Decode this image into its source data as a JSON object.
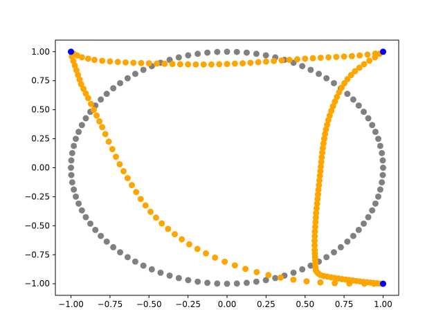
{
  "chart_data": {
    "type": "scatter",
    "title": "",
    "xlabel": "",
    "ylabel": "",
    "xlim": [
      -1.1,
      1.1
    ],
    "ylim": [
      -1.1,
      1.1
    ],
    "grid": false,
    "legend": "none",
    "x_ticks": [
      -1.0,
      -0.75,
      -0.5,
      -0.25,
      0.0,
      0.25,
      0.5,
      0.75,
      1.0
    ],
    "y_ticks": [
      -1.0,
      -0.75,
      -0.5,
      -0.25,
      0.0,
      0.25,
      0.5,
      0.75,
      1.0
    ],
    "x_tick_labels": [
      "−1.00",
      "−0.75",
      "−0.50",
      "−0.25",
      "0.00",
      "0.25",
      "0.50",
      "0.75",
      "1.00"
    ],
    "y_tick_labels": [
      "−1.00",
      "−0.75",
      "−0.50",
      "−0.25",
      "0.00",
      "0.25",
      "0.50",
      "0.75",
      "1.00"
    ],
    "series": [
      {
        "color": "#808080",
        "shape": "unit circle",
        "points": [
          [
            1.0,
            0.0
          ],
          [
            0.998,
            0.063
          ],
          [
            0.992,
            0.126
          ],
          [
            0.982,
            0.188
          ],
          [
            0.969,
            0.249
          ],
          [
            0.951,
            0.309
          ],
          [
            0.93,
            0.368
          ],
          [
            0.905,
            0.426
          ],
          [
            0.876,
            0.482
          ],
          [
            0.844,
            0.536
          ],
          [
            0.809,
            0.588
          ],
          [
            0.771,
            0.637
          ],
          [
            0.729,
            0.685
          ],
          [
            0.685,
            0.729
          ],
          [
            0.637,
            0.771
          ],
          [
            0.588,
            0.809
          ],
          [
            0.536,
            0.844
          ],
          [
            0.482,
            0.876
          ],
          [
            0.426,
            0.905
          ],
          [
            0.368,
            0.93
          ],
          [
            0.309,
            0.951
          ],
          [
            0.249,
            0.969
          ],
          [
            0.188,
            0.982
          ],
          [
            0.126,
            0.992
          ],
          [
            0.063,
            0.998
          ],
          [
            0.0,
            1.0
          ],
          [
            -0.063,
            0.998
          ],
          [
            -0.126,
            0.992
          ],
          [
            -0.188,
            0.982
          ],
          [
            -0.249,
            0.969
          ],
          [
            -0.309,
            0.951
          ],
          [
            -0.368,
            0.93
          ],
          [
            -0.426,
            0.905
          ],
          [
            -0.482,
            0.876
          ],
          [
            -0.536,
            0.844
          ],
          [
            -0.588,
            0.809
          ],
          [
            -0.637,
            0.771
          ],
          [
            -0.685,
            0.729
          ],
          [
            -0.729,
            0.685
          ],
          [
            -0.771,
            0.637
          ],
          [
            -0.809,
            0.588
          ],
          [
            -0.844,
            0.536
          ],
          [
            -0.876,
            0.482
          ],
          [
            -0.905,
            0.426
          ],
          [
            -0.93,
            0.368
          ],
          [
            -0.951,
            0.309
          ],
          [
            -0.969,
            0.249
          ],
          [
            -0.982,
            0.188
          ],
          [
            -0.992,
            0.126
          ],
          [
            -0.998,
            0.063
          ],
          [
            -1.0,
            0.0
          ],
          [
            -0.998,
            -0.063
          ],
          [
            -0.992,
            -0.126
          ],
          [
            -0.982,
            -0.188
          ],
          [
            -0.969,
            -0.249
          ],
          [
            -0.951,
            -0.309
          ],
          [
            -0.93,
            -0.368
          ],
          [
            -0.905,
            -0.426
          ],
          [
            -0.876,
            -0.482
          ],
          [
            -0.844,
            -0.536
          ],
          [
            -0.809,
            -0.588
          ],
          [
            -0.771,
            -0.637
          ],
          [
            -0.729,
            -0.685
          ],
          [
            -0.685,
            -0.729
          ],
          [
            -0.637,
            -0.771
          ],
          [
            -0.588,
            -0.809
          ],
          [
            -0.536,
            -0.844
          ],
          [
            -0.482,
            -0.876
          ],
          [
            -0.426,
            -0.905
          ],
          [
            -0.368,
            -0.93
          ],
          [
            -0.309,
            -0.951
          ],
          [
            -0.249,
            -0.969
          ],
          [
            -0.188,
            -0.982
          ],
          [
            -0.126,
            -0.992
          ],
          [
            -0.063,
            -0.998
          ],
          [
            0.0,
            -1.0
          ],
          [
            0.063,
            -0.998
          ],
          [
            0.126,
            -0.992
          ],
          [
            0.188,
            -0.982
          ],
          [
            0.249,
            -0.969
          ],
          [
            0.309,
            -0.951
          ],
          [
            0.368,
            -0.93
          ],
          [
            0.426,
            -0.905
          ],
          [
            0.482,
            -0.876
          ],
          [
            0.536,
            -0.844
          ],
          [
            0.588,
            -0.809
          ],
          [
            0.637,
            -0.771
          ],
          [
            0.685,
            -0.729
          ],
          [
            0.729,
            -0.685
          ],
          [
            0.771,
            -0.637
          ],
          [
            0.809,
            -0.588
          ],
          [
            0.844,
            -0.536
          ],
          [
            0.876,
            -0.482
          ],
          [
            0.905,
            -0.426
          ],
          [
            0.93,
            -0.368
          ],
          [
            0.951,
            -0.309
          ],
          [
            0.969,
            -0.249
          ],
          [
            0.982,
            -0.188
          ],
          [
            0.992,
            -0.126
          ],
          [
            0.998,
            -0.063
          ]
        ]
      },
      {
        "color": "#ffa500",
        "shape": "curved path through corner points",
        "points": [
          [
            1.0,
            -1.0
          ],
          [
            0.98,
            -0.999
          ],
          [
            0.96,
            -0.996
          ],
          [
            0.939,
            -0.993
          ],
          [
            0.918,
            -0.99
          ],
          [
            0.897,
            -0.987
          ],
          [
            0.875,
            -0.984
          ],
          [
            0.852,
            -0.98
          ],
          [
            0.829,
            -0.976
          ],
          [
            0.806,
            -0.972
          ],
          [
            0.783,
            -0.968
          ],
          [
            0.76,
            -0.964
          ],
          [
            0.737,
            -0.96
          ],
          [
            0.714,
            -0.955
          ],
          [
            0.69,
            -0.95
          ],
          [
            0.667,
            -0.945
          ],
          [
            0.643,
            -0.939
          ],
          [
            0.62,
            -0.933
          ],
          [
            0.597,
            -0.924
          ],
          [
            0.585,
            -0.912
          ],
          [
            0.576,
            -0.899
          ],
          [
            0.569,
            -0.885
          ],
          [
            0.567,
            -0.86
          ],
          [
            0.566,
            -0.83
          ],
          [
            0.565,
            -0.8
          ],
          [
            0.564,
            -0.77
          ],
          [
            0.563,
            -0.74
          ],
          [
            0.562,
            -0.71
          ],
          [
            0.561,
            -0.67
          ],
          [
            0.561,
            -0.63
          ],
          [
            0.562,
            -0.59
          ],
          [
            0.563,
            -0.55
          ],
          [
            0.565,
            -0.51
          ],
          [
            0.567,
            -0.47
          ],
          [
            0.569,
            -0.43
          ],
          [
            0.571,
            -0.39
          ],
          [
            0.574,
            -0.35
          ],
          [
            0.577,
            -0.31
          ],
          [
            0.58,
            -0.27
          ],
          [
            0.583,
            -0.23
          ],
          [
            0.586,
            -0.19
          ],
          [
            0.589,
            -0.15
          ],
          [
            0.592,
            -0.11
          ],
          [
            0.595,
            -0.07
          ],
          [
            0.598,
            -0.03
          ],
          [
            0.601,
            0.01
          ],
          [
            0.604,
            0.05
          ],
          [
            0.607,
            0.09
          ],
          [
            0.61,
            0.13
          ],
          [
            0.614,
            0.17
          ],
          [
            0.618,
            0.21
          ],
          [
            0.623,
            0.25
          ],
          [
            0.628,
            0.29
          ],
          [
            0.634,
            0.33
          ],
          [
            0.641,
            0.37
          ],
          [
            0.649,
            0.41
          ],
          [
            0.658,
            0.45
          ],
          [
            0.668,
            0.49
          ],
          [
            0.679,
            0.53
          ],
          [
            0.691,
            0.57
          ],
          [
            0.704,
            0.61
          ],
          [
            0.718,
            0.65
          ],
          [
            0.734,
            0.69
          ],
          [
            0.752,
            0.728
          ],
          [
            0.772,
            0.764
          ],
          [
            0.795,
            0.799
          ],
          [
            0.82,
            0.832
          ],
          [
            0.848,
            0.862
          ],
          [
            0.878,
            0.892
          ],
          [
            0.912,
            0.922
          ],
          [
            0.948,
            0.952
          ],
          [
            0.977,
            0.982
          ],
          [
            1.0,
            1.0
          ],
          [
            0.95,
            0.984
          ],
          [
            0.9,
            0.975
          ],
          [
            0.85,
            0.968
          ],
          [
            0.8,
            0.962
          ],
          [
            0.75,
            0.958
          ],
          [
            0.7,
            0.955
          ],
          [
            0.65,
            0.952
          ],
          [
            0.6,
            0.948
          ],
          [
            0.55,
            0.944
          ],
          [
            0.5,
            0.94
          ],
          [
            0.45,
            0.935
          ],
          [
            0.4,
            0.93
          ],
          [
            0.35,
            0.925
          ],
          [
            0.3,
            0.92
          ],
          [
            0.25,
            0.915
          ],
          [
            0.2,
            0.91
          ],
          [
            0.15,
            0.905
          ],
          [
            0.1,
            0.9
          ],
          [
            0.05,
            0.897
          ],
          [
            0.0,
            0.894
          ],
          [
            -0.05,
            0.892
          ],
          [
            -0.1,
            0.89
          ],
          [
            -0.15,
            0.89
          ],
          [
            -0.2,
            0.89
          ],
          [
            -0.25,
            0.891
          ],
          [
            -0.3,
            0.892
          ],
          [
            -0.35,
            0.894
          ],
          [
            -0.4,
            0.896
          ],
          [
            -0.45,
            0.898
          ],
          [
            -0.5,
            0.9
          ],
          [
            -0.55,
            0.902
          ],
          [
            -0.6,
            0.905
          ],
          [
            -0.65,
            0.908
          ],
          [
            -0.7,
            0.912
          ],
          [
            -0.75,
            0.916
          ],
          [
            -0.8,
            0.922
          ],
          [
            -0.85,
            0.93
          ],
          [
            -0.89,
            0.94
          ],
          [
            -0.93,
            0.952
          ],
          [
            -0.96,
            0.968
          ],
          [
            -0.985,
            0.985
          ],
          [
            -1.0,
            1.0
          ],
          [
            -0.995,
            0.96
          ],
          [
            -0.985,
            0.92
          ],
          [
            -0.975,
            0.88
          ],
          [
            -0.965,
            0.84
          ],
          [
            -0.955,
            0.8
          ],
          [
            -0.945,
            0.76
          ],
          [
            -0.935,
            0.72
          ],
          [
            -0.92,
            0.68
          ],
          [
            -0.905,
            0.64
          ],
          [
            -0.89,
            0.6
          ],
          [
            -0.872,
            0.55
          ],
          [
            -0.854,
            0.5
          ],
          [
            -0.836,
            0.45
          ],
          [
            -0.818,
            0.4
          ],
          [
            -0.8,
            0.35
          ],
          [
            -0.78,
            0.29
          ],
          [
            -0.758,
            0.225
          ],
          [
            -0.735,
            0.16
          ],
          [
            -0.712,
            0.095
          ],
          [
            -0.688,
            0.03
          ],
          [
            -0.663,
            -0.03
          ],
          [
            -0.637,
            -0.09
          ],
          [
            -0.61,
            -0.15
          ],
          [
            -0.582,
            -0.21
          ],
          [
            -0.553,
            -0.27
          ],
          [
            -0.522,
            -0.325
          ],
          [
            -0.49,
            -0.38
          ],
          [
            -0.455,
            -0.43
          ],
          [
            -0.418,
            -0.48
          ],
          [
            -0.378,
            -0.527
          ],
          [
            -0.335,
            -0.573
          ],
          [
            -0.29,
            -0.617
          ],
          [
            -0.242,
            -0.66
          ],
          [
            -0.19,
            -0.7
          ],
          [
            -0.135,
            -0.738
          ],
          [
            -0.077,
            -0.775
          ],
          [
            -0.015,
            -0.81
          ],
          [
            0.05,
            -0.842
          ],
          [
            0.118,
            -0.872
          ],
          [
            0.19,
            -0.9
          ],
          [
            0.265,
            -0.925
          ],
          [
            0.343,
            -0.947
          ],
          [
            0.425,
            -0.965
          ],
          [
            0.51,
            -0.979
          ],
          [
            0.598,
            -0.989
          ],
          [
            0.69,
            -0.995
          ],
          [
            0.784,
            -0.998
          ],
          [
            0.88,
            -0.999
          ],
          [
            0.94,
            -1.0
          ],
          [
            1.0,
            -1.0
          ]
        ]
      },
      {
        "color": "#0000ff",
        "shape": "corner points",
        "points": [
          [
            -1.0,
            1.0
          ],
          [
            1.0,
            1.0
          ],
          [
            1.0,
            -1.0
          ]
        ]
      }
    ]
  }
}
